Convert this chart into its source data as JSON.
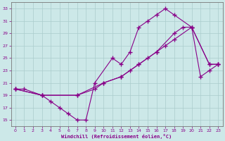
{
  "xlabel": "Windchill (Refroidissement éolien,°C)",
  "background_color": "#cce8e8",
  "line_color": "#880088",
  "xlim": [
    -0.5,
    23.5
  ],
  "ylim": [
    14.0,
    34.0
  ],
  "xticks": [
    0,
    1,
    2,
    3,
    4,
    5,
    6,
    7,
    8,
    9,
    10,
    11,
    12,
    13,
    14,
    15,
    16,
    17,
    18,
    19,
    20,
    21,
    22,
    23
  ],
  "yticks": [
    15,
    17,
    19,
    21,
    23,
    25,
    27,
    29,
    31,
    33
  ],
  "grid_color": "#aacccc",
  "line1_x": [
    0,
    1,
    3,
    4,
    5,
    6,
    7,
    8,
    9,
    11,
    12,
    13,
    14,
    15,
    16,
    17,
    18,
    20,
    22,
    23
  ],
  "line1_y": [
    20,
    20,
    19,
    18,
    17,
    16,
    15,
    15,
    21,
    25,
    24,
    26,
    30,
    31,
    32,
    33,
    32,
    30,
    24,
    24
  ],
  "line2_x": [
    0,
    3,
    7,
    9,
    10,
    12,
    13,
    14,
    15,
    16,
    17,
    18,
    20,
    22,
    23
  ],
  "line2_y": [
    20,
    19,
    19,
    20,
    21,
    22,
    23,
    24,
    25,
    26,
    27,
    28,
    30,
    24,
    24
  ],
  "line3_x": [
    0,
    3,
    7,
    10,
    12,
    14,
    16,
    18,
    19,
    20,
    21,
    22,
    23
  ],
  "line3_y": [
    20,
    19,
    19,
    21,
    22,
    24,
    26,
    29,
    30,
    30,
    22,
    23,
    24
  ]
}
